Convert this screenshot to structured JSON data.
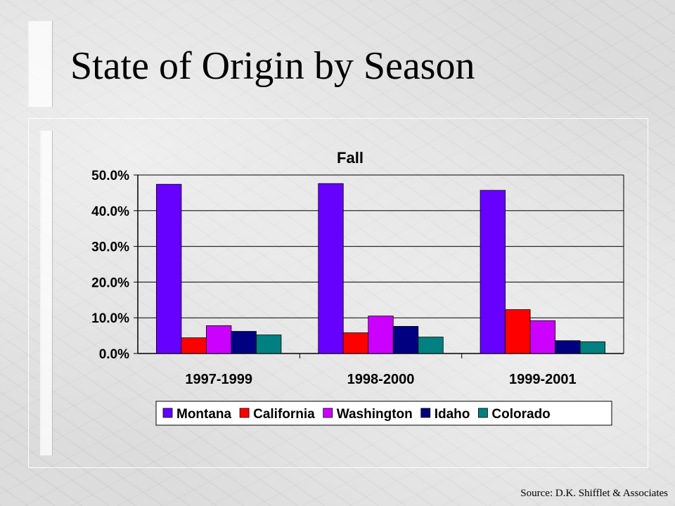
{
  "slide": {
    "title": "State of Origin by Season",
    "source": "Source: D.K. Shifflet & Associates"
  },
  "chart_data": {
    "type": "bar",
    "title": "Fall",
    "categories": [
      "1997-1999",
      "1998-2000",
      "1999-2001"
    ],
    "ylim": [
      0,
      50
    ],
    "yticks": [
      "0.0%",
      "10.0%",
      "20.0%",
      "30.0%",
      "40.0%",
      "50.0%"
    ],
    "grid": true,
    "legend": "bottom",
    "series": [
      {
        "name": "Montana",
        "color": "#6600ff",
        "values": [
          47.4,
          47.6,
          45.7
        ]
      },
      {
        "name": "California",
        "color": "#ff0000",
        "values": [
          4.4,
          5.8,
          12.3
        ]
      },
      {
        "name": "Washington",
        "color": "#cc00ff",
        "values": [
          7.8,
          10.5,
          9.2
        ]
      },
      {
        "name": "Idaho",
        "color": "#000080",
        "values": [
          6.2,
          7.6,
          3.6
        ]
      },
      {
        "name": "Colorado",
        "color": "#008080",
        "values": [
          5.2,
          4.6,
          3.3
        ]
      }
    ]
  }
}
